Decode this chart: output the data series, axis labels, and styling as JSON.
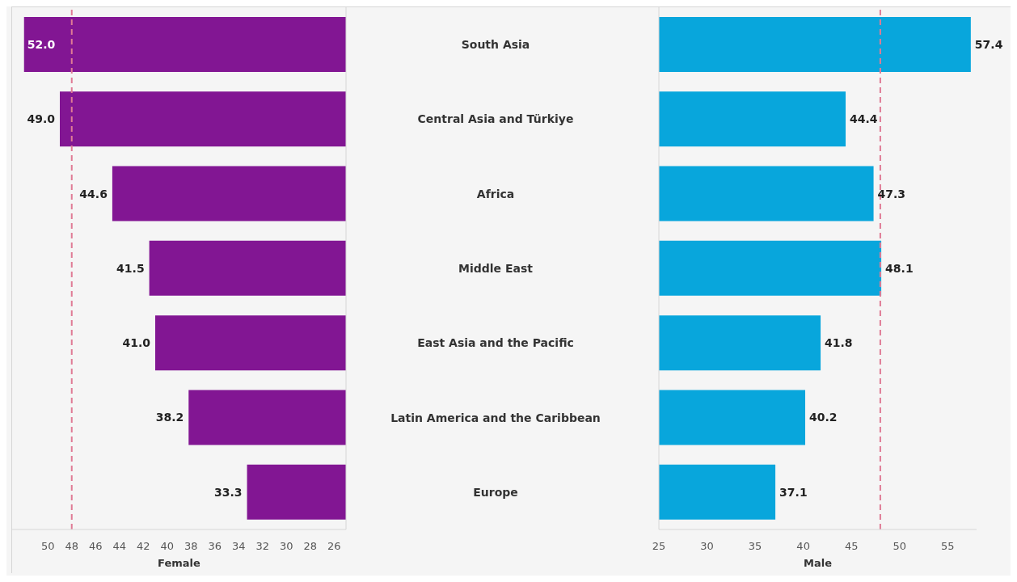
{
  "chart_data": [
    {
      "type": "bar",
      "orientation": "horizontal",
      "categories": [
        "South Asia",
        "Central Asia and Türkiye",
        "Africa",
        "Middle East",
        "East Asia and the Pacific",
        "Latin America and the Caribbean",
        "Europe"
      ],
      "values": [
        52.0,
        49.0,
        44.6,
        41.5,
        41.0,
        38.2,
        33.3
      ],
      "value_labels": [
        "52.0",
        "49.0",
        "44.6",
        "41.5",
        "41.0",
        "38.2",
        "33.3"
      ],
      "color": "#821693",
      "xlabel": "Female",
      "xlim": [
        53,
        25
      ],
      "xticks": [
        50,
        48,
        46,
        44,
        42,
        40,
        38,
        36,
        34,
        32,
        30,
        28,
        26
      ],
      "ref_lines": [
        {
          "axis": "x",
          "value": 48,
          "color": "#e07b95",
          "line_style": "dashed"
        }
      ]
    },
    {
      "type": "bar",
      "orientation": "horizontal",
      "categories": [
        null,
        null,
        null,
        null,
        null,
        null,
        null
      ],
      "values": [
        57.4,
        44.4,
        47.3,
        48.1,
        41.8,
        40.2,
        37.1
      ],
      "value_labels": [
        "57.4",
        "44.4",
        "47.3",
        "48.1",
        "41.8",
        "40.2",
        "37.1"
      ],
      "color": "#08a6dc",
      "xlabel": "Male",
      "xlim": [
        25,
        58
      ],
      "xticks": [
        25,
        30,
        35,
        40,
        45,
        50,
        55
      ],
      "tick_labels": "x",
      "ref_lines": [
        {
          "axis": "x",
          "value": 48,
          "color": "#e07b95",
          "line_style": "dashed"
        }
      ]
    }
  ]
}
